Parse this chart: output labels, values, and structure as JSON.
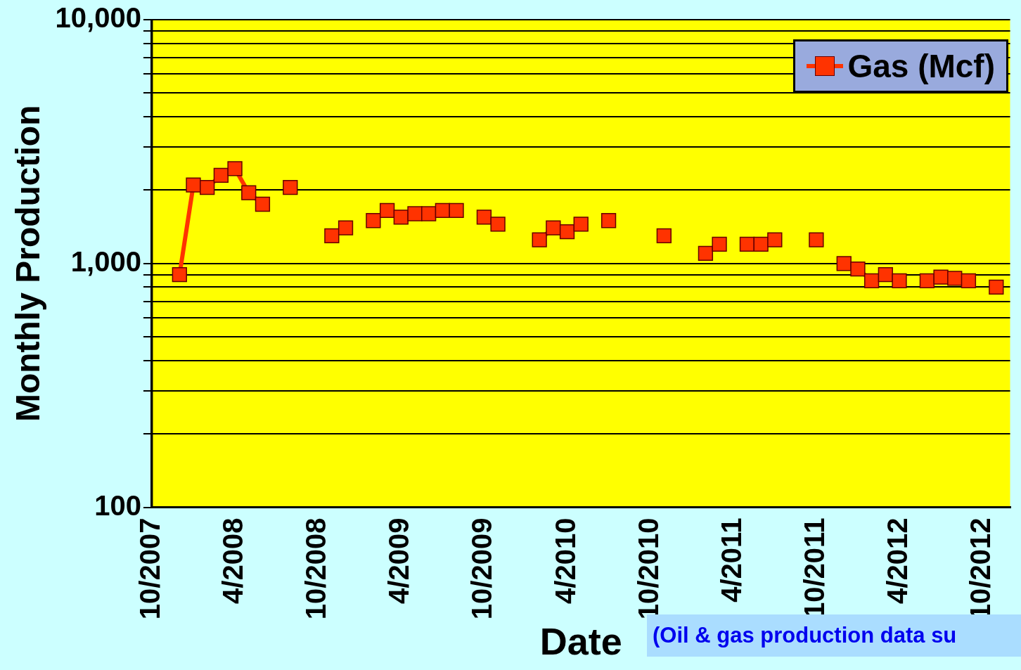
{
  "chart_data": {
    "type": "line",
    "xlabel": "Date",
    "ylabel": "Monthly Production",
    "x": [
      "2007-12",
      "2008-01",
      "2008-02",
      "2008-03",
      "2008-04",
      "2008-05",
      "2008-06",
      "2008-07",
      "2008-08",
      "2008-09",
      "2008-10",
      "2008-11",
      "2008-12",
      "2009-01",
      "2009-02",
      "2009-03",
      "2009-04",
      "2009-05",
      "2009-06",
      "2009-07",
      "2009-08",
      "2009-09",
      "2009-10",
      "2009-11",
      "2009-12",
      "2010-01",
      "2010-02",
      "2010-03",
      "2010-04",
      "2010-05",
      "2010-06",
      "2010-07",
      "2010-08",
      "2010-09",
      "2010-10",
      "2010-11",
      "2010-12",
      "2011-01",
      "2011-02",
      "2011-03",
      "2011-04",
      "2011-05",
      "2011-06",
      "2011-07",
      "2011-08",
      "2011-09",
      "2011-10",
      "2011-11",
      "2011-12",
      "2012-01",
      "2012-02",
      "2012-03",
      "2012-04",
      "2012-05",
      "2012-06",
      "2012-07",
      "2012-08",
      "2012-09",
      "2012-10",
      "2012-11"
    ],
    "series": [
      {
        "name": "Gas (Mcf)",
        "color": "#ff3300",
        "values": [
          900,
          2100,
          2050,
          2300,
          2450,
          1950,
          1750,
          null,
          2050,
          null,
          null,
          1300,
          1400,
          null,
          1500,
          1650,
          1550,
          1600,
          1600,
          1650,
          1650,
          null,
          1550,
          1450,
          null,
          null,
          1250,
          1400,
          1350,
          1450,
          null,
          1500,
          null,
          null,
          null,
          1300,
          null,
          null,
          1100,
          1200,
          null,
          1200,
          1200,
          1250,
          null,
          null,
          1250,
          null,
          1000,
          950,
          850,
          900,
          850,
          null,
          850,
          880,
          870,
          850,
          null,
          800
        ]
      }
    ],
    "xlim": [
      "2007-10",
      "2012-12"
    ],
    "xticks": [
      {
        "value": "2007-10",
        "label": "10/2007"
      },
      {
        "value": "2008-04",
        "label": "4/2008"
      },
      {
        "value": "2008-10",
        "label": "10/2008"
      },
      {
        "value": "2009-04",
        "label": "4/2009"
      },
      {
        "value": "2009-10",
        "label": "10/2009"
      },
      {
        "value": "2010-04",
        "label": "4/2010"
      },
      {
        "value": "2010-10",
        "label": "10/2010"
      },
      {
        "value": "2011-04",
        "label": "4/2011"
      },
      {
        "value": "2011-10",
        "label": "10/2011"
      },
      {
        "value": "2012-04",
        "label": "4/2012"
      },
      {
        "value": "2012-10",
        "label": "10/2012"
      }
    ],
    "ylim": [
      100,
      10000
    ],
    "yticks": [
      {
        "value": 100,
        "label": "100"
      },
      {
        "value": 200,
        "label": null
      },
      {
        "value": 300,
        "label": null
      },
      {
        "value": 400,
        "label": null
      },
      {
        "value": 500,
        "label": null
      },
      {
        "value": 600,
        "label": null
      },
      {
        "value": 700,
        "label": null
      },
      {
        "value": 800,
        "label": null
      },
      {
        "value": 900,
        "label": null
      },
      {
        "value": 1000,
        "label": "1,000"
      },
      {
        "value": 2000,
        "label": null
      },
      {
        "value": 3000,
        "label": null
      },
      {
        "value": 4000,
        "label": null
      },
      {
        "value": 5000,
        "label": null
      },
      {
        "value": 6000,
        "label": null
      },
      {
        "value": 7000,
        "label": null
      },
      {
        "value": 8000,
        "label": null
      },
      {
        "value": 9000,
        "label": null
      },
      {
        "value": 10000,
        "label": "10,000"
      }
    ],
    "log": "y",
    "grid": "y",
    "legend": "top right",
    "marker": "square",
    "line_style": "solid",
    "annotations": [
      "(Oil & gas production data su"
    ]
  }
}
